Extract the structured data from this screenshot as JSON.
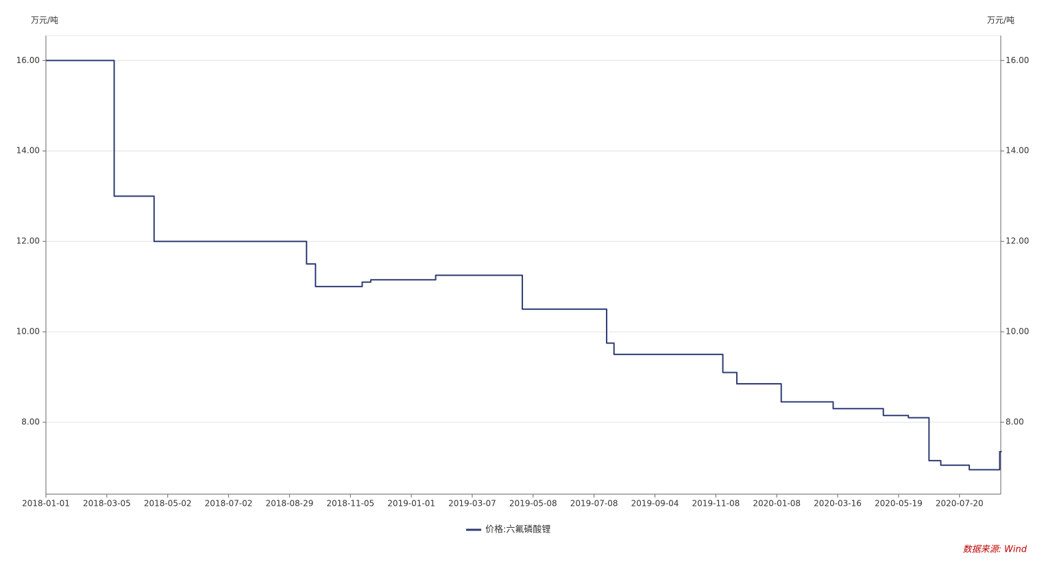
{
  "chart_data": {
    "type": "line",
    "y_unit": "万元/吨",
    "y2_unit": "万元/吨",
    "source": "数据来源: Wind",
    "xlim": [
      "2018-01-01",
      "2020-09-01"
    ],
    "xticks": [
      "2018-01-01",
      "2018-03-05",
      "2018-05-02",
      "2018-07-02",
      "2018-08-29",
      "2018-11-05",
      "2019-01-01",
      "2019-03-07",
      "2019-05-08",
      "2019-07-08",
      "2019-09-04",
      "2019-11-08",
      "2020-01-08",
      "2020-03-16",
      "2020-05-19",
      "2020-07-20"
    ],
    "ylim": [
      6.41,
      16.55
    ],
    "yticks": [
      {
        "value": 8,
        "label": "8.00"
      },
      {
        "value": 10,
        "label": "10.00"
      },
      {
        "value": 12,
        "label": "12.00"
      },
      {
        "value": 14,
        "label": "14.00"
      },
      {
        "value": 16,
        "label": "16.00"
      }
    ],
    "y2lim": [
      6.41,
      16.55
    ],
    "y2ticks": [
      {
        "value": 8,
        "label": "8.00"
      },
      {
        "value": 10,
        "label": "10.00"
      },
      {
        "value": 12,
        "label": "12.00"
      },
      {
        "value": 14,
        "label": "14.00"
      },
      {
        "value": 16,
        "label": "16.00"
      }
    ],
    "grid": true,
    "step": true,
    "legend": "bottom",
    "x": [
      "2018-01-01",
      "2018-03-12",
      "2018-04-19",
      "2018-09-17",
      "2018-09-27",
      "2018-11-16",
      "2018-11-24",
      "2019-01-27",
      "2019-04-27",
      "2019-07-20",
      "2019-07-27",
      "2019-11-15",
      "2019-11-29",
      "2020-01-13",
      "2020-03-11",
      "2020-05-03",
      "2020-05-29",
      "2020-06-19",
      "2020-07-01",
      "2020-07-30",
      "2020-08-30"
    ],
    "series": [
      {
        "name": "价格:六氟磷酸锂",
        "color": "#2e3b73",
        "values": [
          16.0,
          13.0,
          12.0,
          11.5,
          11.0,
          11.1,
          11.15,
          11.25,
          10.5,
          9.75,
          9.5,
          9.1,
          8.85,
          8.45,
          8.3,
          8.15,
          8.1,
          7.15,
          7.05,
          6.95,
          7.35
        ]
      }
    ]
  }
}
